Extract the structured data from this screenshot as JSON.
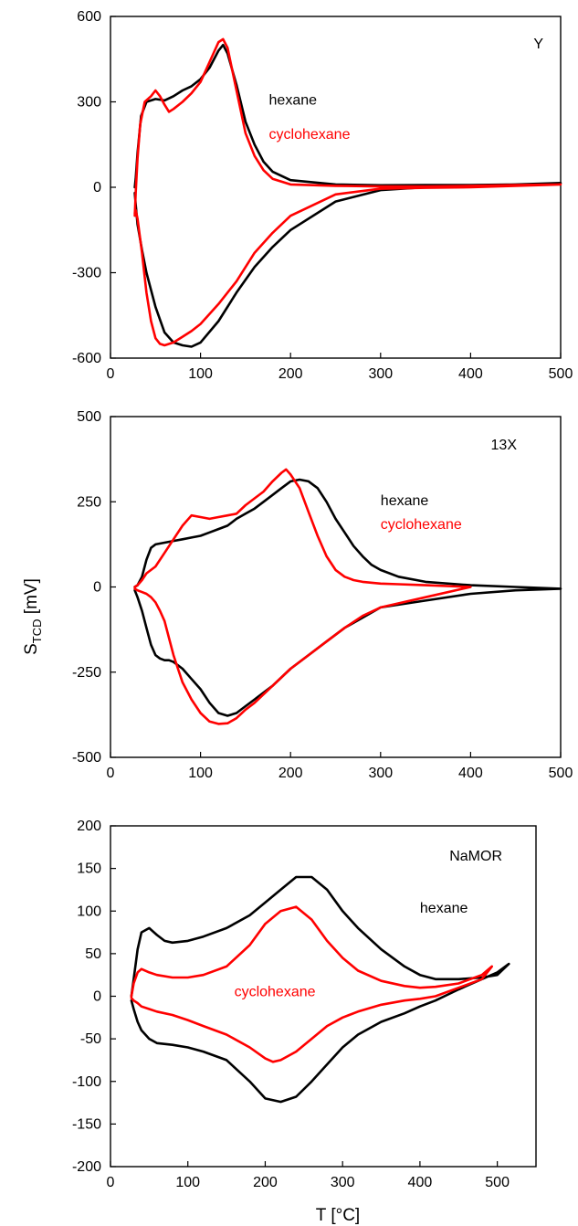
{
  "figure": {
    "shared_ylabel_main": "S",
    "shared_ylabel_sub": "TCD",
    "shared_ylabel_unit": " [mV]",
    "shared_xlabel": "T [°C]"
  },
  "colors": {
    "hexane": "#000000",
    "cyclohexane": "#ff0000",
    "axis": "#000000"
  },
  "chart_data": [
    {
      "type": "line",
      "panel_label": "Y",
      "xlim": [
        0,
        500
      ],
      "ylim": [
        -600,
        600
      ],
      "xticks": [
        0,
        100,
        200,
        300,
        400,
        500
      ],
      "yticks": [
        -600,
        -300,
        0,
        300,
        600
      ],
      "grid": false,
      "series": [
        {
          "name": "hexane",
          "color": "#000000",
          "x": [
            27,
            28,
            30,
            34,
            40,
            50,
            60,
            70,
            80,
            90,
            100,
            110,
            120,
            125,
            130,
            140,
            150,
            160,
            170,
            180,
            200,
            250,
            300,
            350,
            400,
            450,
            500,
            500,
            450,
            400,
            350,
            300,
            250,
            200,
            180,
            160,
            140,
            120,
            100,
            90,
            80,
            70,
            60,
            50,
            40,
            35,
            30,
            28,
            27
          ],
          "y": [
            0,
            30,
            120,
            250,
            300,
            310,
            305,
            320,
            340,
            355,
            380,
            420,
            480,
            500,
            470,
            360,
            230,
            150,
            90,
            55,
            25,
            10,
            7,
            8,
            8,
            10,
            15,
            15,
            10,
            6,
            0,
            -10,
            -50,
            -150,
            -210,
            -280,
            -370,
            -470,
            -545,
            -560,
            -555,
            -545,
            -510,
            -420,
            -300,
            -220,
            -130,
            -60,
            -20
          ]
        },
        {
          "name": "cyclohexane",
          "color": "#ff0000",
          "x": [
            27,
            28,
            30,
            33,
            38,
            45,
            50,
            55,
            60,
            65,
            70,
            80,
            90,
            100,
            110,
            120,
            125,
            130,
            140,
            150,
            160,
            170,
            180,
            200,
            250,
            300,
            350,
            400,
            450,
            500,
            500,
            450,
            400,
            350,
            300,
            250,
            200,
            180,
            160,
            140,
            120,
            100,
            90,
            80,
            70,
            60,
            55,
            50,
            45,
            40,
            35,
            30,
            28,
            27
          ],
          "y": [
            -100,
            -20,
            100,
            220,
            300,
            320,
            340,
            320,
            290,
            265,
            275,
            300,
            330,
            370,
            440,
            510,
            520,
            490,
            340,
            190,
            110,
            60,
            30,
            10,
            5,
            3,
            3,
            5,
            8,
            10,
            10,
            5,
            0,
            -2,
            -5,
            -25,
            -100,
            -160,
            -230,
            -330,
            -410,
            -480,
            -505,
            -525,
            -545,
            -555,
            -550,
            -530,
            -470,
            -370,
            -230,
            -110,
            -80,
            -90
          ]
        }
      ],
      "annotations": [
        {
          "text": "hexane",
          "x": 176,
          "y": 290,
          "color": "#000000"
        },
        {
          "text": "cyclohexane",
          "x": 176,
          "y": 170,
          "color": "#ff0000"
        }
      ]
    },
    {
      "type": "line",
      "panel_label": "13X",
      "xlim": [
        0,
        500
      ],
      "ylim": [
        -500,
        500
      ],
      "xticks": [
        0,
        100,
        200,
        300,
        400,
        500
      ],
      "yticks": [
        -500,
        -250,
        0,
        250,
        500
      ],
      "grid": false,
      "series": [
        {
          "name": "hexane",
          "color": "#000000",
          "x": [
            27,
            30,
            35,
            40,
            45,
            50,
            60,
            70,
            80,
            90,
            100,
            110,
            120,
            130,
            140,
            150,
            160,
            170,
            180,
            190,
            200,
            210,
            220,
            230,
            240,
            250,
            260,
            270,
            280,
            290,
            300,
            320,
            350,
            400,
            450,
            500,
            500,
            450,
            400,
            350,
            300,
            280,
            260,
            240,
            220,
            200,
            180,
            160,
            150,
            140,
            130,
            120,
            110,
            100,
            90,
            80,
            70,
            65,
            60,
            55,
            50,
            45,
            40,
            35,
            30,
            27
          ],
          "y": [
            0,
            5,
            30,
            80,
            115,
            125,
            130,
            135,
            140,
            145,
            150,
            160,
            170,
            180,
            200,
            215,
            230,
            250,
            270,
            290,
            310,
            315,
            310,
            290,
            250,
            200,
            160,
            120,
            90,
            65,
            50,
            30,
            15,
            5,
            0,
            -5,
            -5,
            -10,
            -20,
            -40,
            -60,
            -90,
            -120,
            -160,
            -200,
            -240,
            -290,
            -330,
            -350,
            -370,
            -378,
            -370,
            -340,
            -300,
            -270,
            -240,
            -220,
            -215,
            -215,
            -210,
            -200,
            -170,
            -120,
            -70,
            -30,
            -10
          ]
        },
        {
          "name": "cyclohexane",
          "color": "#ff0000",
          "x": [
            27,
            30,
            35,
            40,
            50,
            60,
            70,
            80,
            90,
            100,
            110,
            120,
            130,
            140,
            150,
            160,
            170,
            180,
            190,
            195,
            200,
            210,
            220,
            230,
            240,
            250,
            260,
            270,
            280,
            300,
            320,
            350,
            400,
            400,
            350,
            300,
            280,
            260,
            240,
            220,
            200,
            180,
            160,
            150,
            140,
            130,
            120,
            110,
            100,
            90,
            80,
            75,
            70,
            65,
            60,
            55,
            50,
            45,
            40,
            35,
            30,
            27
          ],
          "y": [
            0,
            5,
            20,
            40,
            60,
            100,
            140,
            180,
            210,
            205,
            200,
            205,
            210,
            215,
            240,
            260,
            280,
            310,
            335,
            345,
            330,
            290,
            220,
            150,
            90,
            50,
            30,
            20,
            15,
            10,
            8,
            5,
            0,
            0,
            -30,
            -60,
            -85,
            -120,
            -160,
            -200,
            -240,
            -290,
            -340,
            -360,
            -385,
            -400,
            -402,
            -395,
            -370,
            -330,
            -280,
            -240,
            -200,
            -150,
            -100,
            -70,
            -45,
            -30,
            -20,
            -15,
            -10,
            -5
          ]
        }
      ],
      "annotations": [
        {
          "text": "hexane",
          "x": 300,
          "y": 240,
          "color": "#000000"
        },
        {
          "text": "cyclohexane",
          "x": 300,
          "y": 170,
          "color": "#ff0000"
        }
      ]
    },
    {
      "type": "line",
      "panel_label": "NaMOR",
      "xlim": [
        0,
        550
      ],
      "ylim": [
        -200,
        200
      ],
      "xticks": [
        0,
        100,
        200,
        300,
        400,
        500
      ],
      "yticks": [
        -200,
        -150,
        -100,
        -50,
        0,
        50,
        100,
        150,
        200
      ],
      "grid": false,
      "series": [
        {
          "name": "hexane",
          "color": "#000000",
          "x": [
            27,
            30,
            35,
            40,
            50,
            60,
            70,
            80,
            100,
            120,
            150,
            180,
            200,
            220,
            240,
            260,
            280,
            300,
            320,
            350,
            380,
            400,
            420,
            450,
            480,
            500,
            515,
            515,
            500,
            480,
            450,
            420,
            400,
            380,
            350,
            320,
            300,
            280,
            260,
            240,
            220,
            200,
            180,
            150,
            120,
            100,
            80,
            60,
            50,
            40,
            35,
            30,
            27
          ],
          "y": [
            0,
            20,
            55,
            75,
            80,
            72,
            65,
            63,
            65,
            70,
            80,
            95,
            110,
            125,
            140,
            140,
            125,
            100,
            80,
            55,
            35,
            25,
            20,
            20,
            22,
            25,
            38,
            38,
            28,
            20,
            8,
            -5,
            -12,
            -20,
            -30,
            -45,
            -60,
            -80,
            -100,
            -118,
            -124,
            -120,
            -100,
            -75,
            -65,
            -60,
            -57,
            -55,
            -50,
            -40,
            -30,
            -15,
            -5
          ]
        },
        {
          "name": "cyclohexane",
          "color": "#ff0000",
          "x": [
            27,
            30,
            35,
            40,
            50,
            60,
            80,
            100,
            120,
            150,
            180,
            200,
            220,
            240,
            260,
            280,
            300,
            320,
            350,
            380,
            400,
            420,
            450,
            480,
            493,
            493,
            480,
            450,
            420,
            400,
            380,
            350,
            320,
            300,
            280,
            260,
            240,
            220,
            210,
            200,
            180,
            150,
            120,
            100,
            80,
            60,
            50,
            40,
            35,
            30,
            27
          ],
          "y": [
            0,
            15,
            28,
            32,
            28,
            25,
            22,
            22,
            25,
            35,
            60,
            85,
            100,
            105,
            90,
            65,
            45,
            30,
            18,
            12,
            10,
            11,
            15,
            25,
            35,
            35,
            20,
            10,
            0,
            -3,
            -5,
            -10,
            -18,
            -25,
            -35,
            -50,
            -65,
            -75,
            -77,
            -73,
            -60,
            -45,
            -35,
            -28,
            -22,
            -18,
            -15,
            -12,
            -8,
            -5,
            -2
          ]
        }
      ],
      "annotations": [
        {
          "text": "hexane",
          "x": 400,
          "y": 98,
          "color": "#000000"
        },
        {
          "text": "cyclohexane",
          "x": 160,
          "y": 0,
          "color": "#ff0000"
        }
      ]
    }
  ]
}
